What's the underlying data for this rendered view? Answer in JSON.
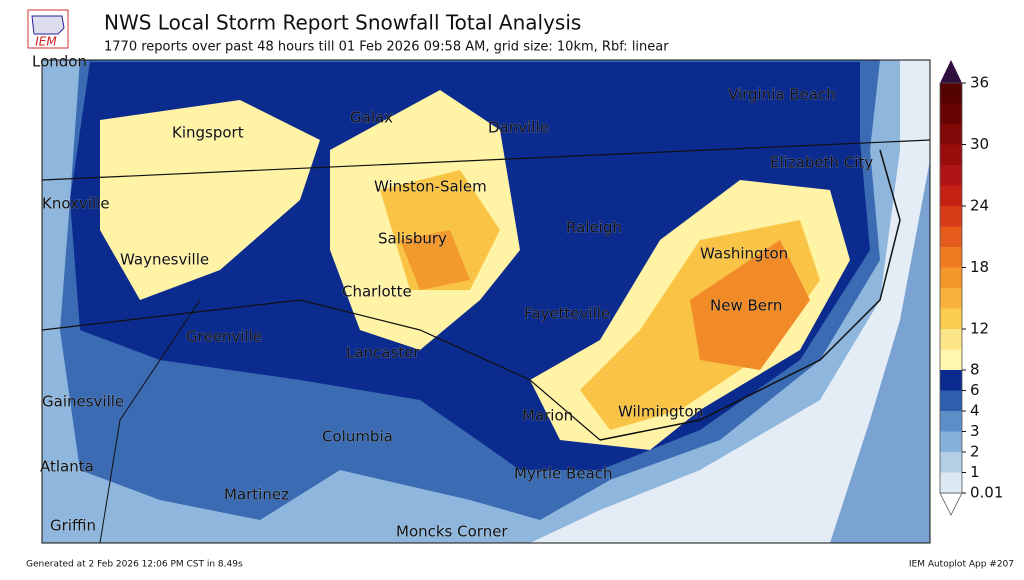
{
  "header": {
    "logo": "IEM",
    "title": "NWS Local Storm Report Snowfall Total Analysis",
    "subtitle": "1770 reports over past 48 hours till 01 Feb 2026 09:58 AM, grid size: 10km, Rbf: linear"
  },
  "cities": [
    "London",
    "Virginia Beach",
    "Kingsport",
    "Galax",
    "Danville",
    "Elizabeth City",
    "Knoxville",
    "Winston-Salem",
    "Raleigh",
    "Salisbury",
    "Washington",
    "Waynesville",
    "Charlotte",
    "New Bern",
    "Fayetteville",
    "Greenville",
    "Lancaster",
    "Gainesville",
    "Marion",
    "Wilmington",
    "Columbia",
    "Atlanta",
    "Myrtle Beach",
    "Martinez",
    "Griffin",
    "Moncks Corner"
  ],
  "colorbar": {
    "levels": [
      0.01,
      1,
      2,
      3,
      4,
      6,
      8,
      10,
      12,
      14,
      16,
      18,
      20,
      22,
      24,
      26,
      28,
      30,
      32,
      34,
      36
    ],
    "colors": [
      "#dce8f3",
      "#b3cfe6",
      "#86b2d9",
      "#5c8fc8",
      "#2d5fae",
      "#0b2a8f",
      "#fff7ae",
      "#fde68a",
      "#fbcd4f",
      "#f8b13b",
      "#f5962b",
      "#ef7a22",
      "#e55b1b",
      "#d83b17",
      "#c52216",
      "#b01414",
      "#990d0d",
      "#820808",
      "#6a0404",
      "#550202"
    ],
    "ticks": [
      0.01,
      1,
      2,
      3,
      4,
      6,
      8,
      12,
      18,
      24,
      30,
      36
    ]
  },
  "footer": {
    "left": "Generated at 2 Feb 2026 12:06 PM CST in 8.49s",
    "right": "IEM Autoplot App #207"
  }
}
